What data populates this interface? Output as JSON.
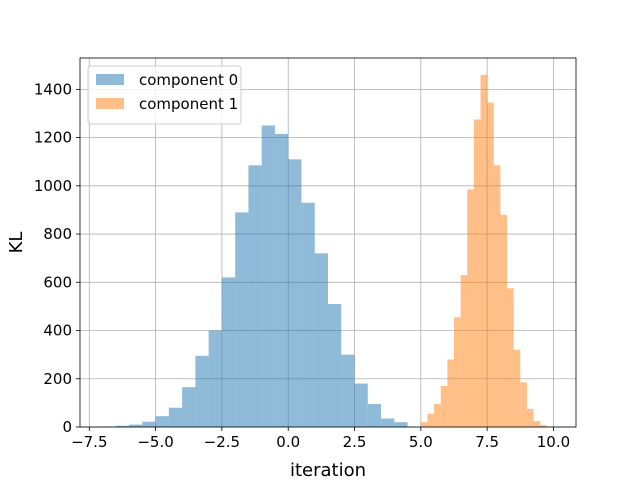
{
  "chart_data": {
    "type": "bar",
    "subtype": "histogram",
    "xlabel": "iteration",
    "ylabel": "KL",
    "xlim": [
      -7.85,
      10.85
    ],
    "ylim": [
      0,
      1530
    ],
    "grid": true,
    "legend_position": "top-left",
    "x_ticks": [
      -7.5,
      -5.0,
      -2.5,
      0.0,
      2.5,
      5.0,
      7.5,
      10.0
    ],
    "x_tick_labels": [
      "−7.5",
      "−5.0",
      "−2.5",
      "0.0",
      "2.5",
      "5.0",
      "7.5",
      "10.0"
    ],
    "y_ticks": [
      0,
      200,
      400,
      600,
      800,
      1000,
      1200,
      1400
    ],
    "y_tick_labels": [
      "0",
      "200",
      "400",
      "600",
      "800",
      "1000",
      "1200",
      "1400"
    ],
    "series": [
      {
        "name": "component 0",
        "color": "#1f77b4",
        "alpha": 0.5,
        "bin_edges": [
          -7.5,
          -7.0,
          -6.5,
          -6.0,
          -5.5,
          -5.0,
          -4.5,
          -4.0,
          -3.5,
          -3.0,
          -2.5,
          -2.0,
          -1.5,
          -1.0,
          -0.5,
          0.0,
          0.5,
          1.0,
          1.5,
          2.0,
          2.5,
          3.0,
          3.5,
          4.0,
          4.5
        ],
        "counts": [
          1,
          2,
          5,
          10,
          22,
          45,
          80,
          165,
          295,
          400,
          620,
          890,
          1085,
          1250,
          1215,
          1110,
          930,
          720,
          510,
          300,
          180,
          95,
          35,
          20
        ]
      },
      {
        "name": "component 1",
        "color": "#ff7f0e",
        "alpha": 0.5,
        "bin_edges": [
          5.0,
          5.25,
          5.5,
          5.75,
          6.0,
          6.25,
          6.5,
          6.75,
          7.0,
          7.25,
          7.5,
          7.75,
          8.0,
          8.25,
          8.5,
          8.75,
          9.0,
          9.25,
          9.5,
          9.75
        ],
        "counts": [
          20,
          55,
          95,
          170,
          280,
          455,
          630,
          985,
          1275,
          1460,
          1345,
          1085,
          880,
          575,
          320,
          185,
          75,
          25,
          8
        ]
      }
    ]
  }
}
